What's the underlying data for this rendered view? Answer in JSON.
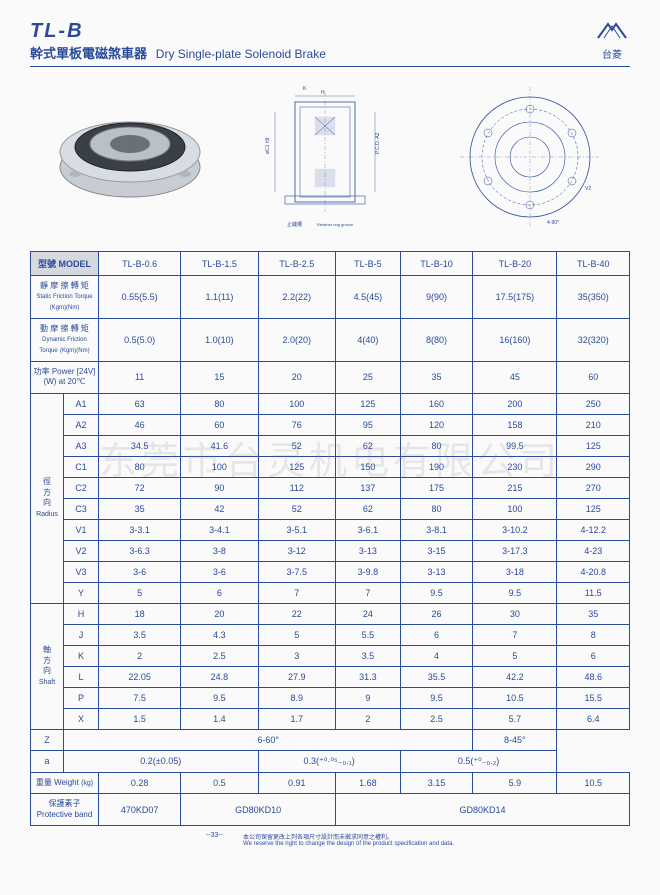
{
  "header": {
    "model": "TL-B",
    "subtitle_cn": "幹式單板電磁煞車器",
    "subtitle_en": "Dry Single-plate Solenoid Brake",
    "logo_text": "台菱"
  },
  "watermark": "东莞市台灵机电有限公司",
  "table": {
    "model_label": "型號 MODEL",
    "models": [
      "TL-B-0.6",
      "TL-B-1.5",
      "TL-B-2.5",
      "TL-B-5",
      "TL-B-10",
      "TL-B-20",
      "TL-B-40"
    ],
    "static_label_cn": "靜 摩 擦 轉 矩",
    "static_label_en": "Static Friction Torque",
    "static_unit": "(Kgm)(Nm)",
    "static": [
      "0.55(5.5)",
      "1.1(11)",
      "2.2(22)",
      "4.5(45)",
      "9(90)",
      "17.5(175)",
      "35(350)"
    ],
    "dynamic_label_cn": "動 摩 擦 轉 矩",
    "dynamic_label_en": "Dynamic Friction Torque",
    "dynamic_unit": "(Kgm)(Nm)",
    "dynamic": [
      "0.5(5.0)",
      "1.0(10)",
      "2.0(20)",
      "4(40)",
      "8(80)",
      "16(160)",
      "32(320)"
    ],
    "power_label": "功率 Power [24V](W) at 20℃",
    "power": [
      "11",
      "15",
      "20",
      "25",
      "35",
      "45",
      "60"
    ],
    "radius_label_cn": "徑方向",
    "radius_label_en": "Radius",
    "radius_rows": [
      {
        "k": "A1",
        "v": [
          "63",
          "80",
          "100",
          "125",
          "160",
          "200",
          "250"
        ]
      },
      {
        "k": "A2",
        "v": [
          "46",
          "60",
          "76",
          "95",
          "120",
          "158",
          "210"
        ]
      },
      {
        "k": "A3",
        "v": [
          "34.5",
          "41.6",
          "52",
          "62",
          "80",
          "99.5",
          "125"
        ]
      },
      {
        "k": "C1",
        "v": [
          "80",
          "100",
          "125",
          "150",
          "190",
          "230",
          "290"
        ]
      },
      {
        "k": "C2",
        "v": [
          "72",
          "90",
          "112",
          "137",
          "175",
          "215",
          "270"
        ]
      },
      {
        "k": "C3",
        "v": [
          "35",
          "42",
          "52",
          "62",
          "80",
          "100",
          "125"
        ]
      },
      {
        "k": "V1",
        "v": [
          "3-3.1",
          "3-4.1",
          "3-5.1",
          "3-6.1",
          "3-8.1",
          "3-10.2",
          "4-12.2"
        ]
      },
      {
        "k": "V2",
        "v": [
          "3-6.3",
          "3-8",
          "3-12",
          "3-13",
          "3-15",
          "3-17.3",
          "4-23"
        ]
      },
      {
        "k": "V3",
        "v": [
          "3-6",
          "3-6",
          "3-7.5",
          "3-9.8",
          "3-13",
          "3-18",
          "4-20.8"
        ]
      },
      {
        "k": "Y",
        "v": [
          "5",
          "6",
          "7",
          "7",
          "9.5",
          "9.5",
          "11.5"
        ]
      }
    ],
    "shaft_label_cn": "軸方向",
    "shaft_label_en": "Shaft",
    "shaft_rows": [
      {
        "k": "H",
        "v": [
          "18",
          "20",
          "22",
          "24",
          "26",
          "30",
          "35"
        ]
      },
      {
        "k": "J",
        "v": [
          "3.5",
          "4.3",
          "5",
          "5.5",
          "6",
          "7",
          "8"
        ]
      },
      {
        "k": "K",
        "v": [
          "2",
          "2.5",
          "3",
          "3.5",
          "4",
          "5",
          "6"
        ]
      },
      {
        "k": "L",
        "v": [
          "22.05",
          "24.8",
          "27.9",
          "31.3",
          "35.5",
          "42.2",
          "48.6"
        ]
      },
      {
        "k": "P",
        "v": [
          "7.5",
          "9.5",
          "8.9",
          "9",
          "9.5",
          "10.5",
          "15.5"
        ]
      },
      {
        "k": "X",
        "v": [
          "1.5",
          "1.4",
          "1.7",
          "2",
          "2.5",
          "5.7",
          "6.4"
        ]
      }
    ],
    "z_label": "Z",
    "z_val_1": "6-60°",
    "z_val_2": "8-45°",
    "a_label": "a",
    "a_vals": [
      "0.2(±0.05)",
      "0.3(⁺⁰·⁰⁵₋₀.₁)",
      "0.5(⁺⁰₋₀.₂)"
    ],
    "weight_label": "重量 Weight",
    "weight_unit": "(kg)",
    "weight": [
      "0.28",
      "0.5",
      "0.91",
      "1.68",
      "3.15",
      "5.9",
      "10.5"
    ],
    "band_label": "保護素子 Protective band",
    "band": [
      "470KD07",
      "GD80KD10",
      "GD80KD14"
    ]
  },
  "footer": {
    "page": "--33--",
    "note": "本公司保留更改上列各項尺寸設計而未徵求同意之權利。\nWe reserve the right to change the design of the product specification and data."
  }
}
